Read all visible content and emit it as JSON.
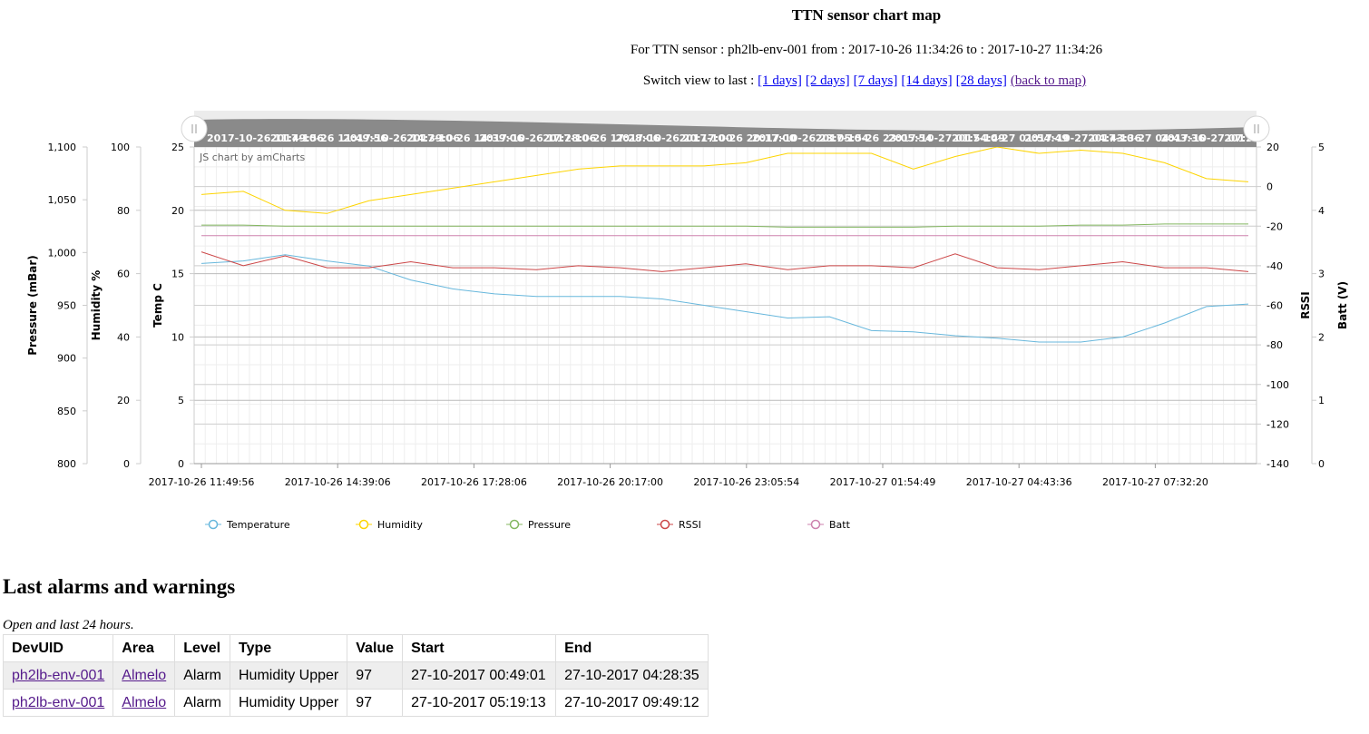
{
  "page": {
    "title": "TTN sensor chart map",
    "subtitle": "For TTN sensor : ph2lb-env-001 from : 2017-10-26 11:34:26 to : 2017-10-27 11:34:26",
    "switch_label": "Switch view to last :",
    "switch_links": [
      "[1 days]",
      "[2 days]",
      "[7 days]",
      "[14 days]",
      "[28 days]"
    ],
    "back_link": "(back to map)"
  },
  "chart_data": {
    "type": "line",
    "credit": "JS chart by amCharts",
    "x_labels": [
      "2017-10-26 11:49:56",
      "2017-10-26 14:39:06",
      "2017-10-26 17:28:06",
      "2017-10-26 20:17:00",
      "2017-10-26 23:05:54",
      "2017-10-27 01:54:49",
      "2017-10-27 04:43:36",
      "2017-10-27 07:32:20"
    ],
    "axes": {
      "pressure": {
        "label": "Pressure (mBar)",
        "range": [
          800,
          1100
        ],
        "ticks": [
          "800",
          "850",
          "900",
          "950",
          "1,000",
          "1,050",
          "1,100"
        ]
      },
      "humidity": {
        "label": "Humidity %",
        "range": [
          0,
          100
        ],
        "ticks": [
          "0",
          "20",
          "40",
          "60",
          "80",
          "100"
        ]
      },
      "temp": {
        "label": "Temp C",
        "range": [
          0,
          25
        ],
        "ticks": [
          "0",
          "5",
          "10",
          "15",
          "20",
          "25"
        ]
      },
      "rssi": {
        "label": "RSSI",
        "range": [
          -140,
          20
        ],
        "ticks": [
          "-140",
          "-120",
          "-100",
          "-80",
          "-60",
          "-40",
          "-20",
          "0",
          "20"
        ]
      },
      "batt": {
        "label": "Batt (V)",
        "range": [
          0,
          5
        ],
        "ticks": [
          "0",
          "1",
          "2",
          "3",
          "4",
          "5"
        ]
      }
    },
    "series": [
      {
        "name": "Temperature",
        "axis": "temp",
        "color": "#67b7dc",
        "values": [
          15.8,
          16.0,
          16.5,
          16.0,
          15.6,
          14.5,
          13.8,
          13.4,
          13.2,
          13.2,
          13.2,
          13.0,
          12.5,
          12.0,
          11.5,
          11.6,
          10.5,
          10.4,
          10.1,
          9.9,
          9.6,
          9.6,
          10.0,
          11.1,
          12.4,
          12.6
        ]
      },
      {
        "name": "Humidity",
        "axis": "humidity",
        "color": "#fdd400",
        "values": [
          85,
          86,
          80,
          79,
          83,
          85,
          87,
          89,
          91,
          93,
          94,
          94,
          94,
          95,
          98,
          98,
          98,
          93,
          97,
          100,
          98,
          99,
          98,
          95,
          90,
          89
        ]
      },
      {
        "name": "Pressure",
        "axis": "pressure",
        "color": "#84b761",
        "values": [
          1026,
          1026,
          1025,
          1025,
          1025,
          1025,
          1025,
          1025,
          1025,
          1025,
          1025,
          1025,
          1025,
          1025,
          1024,
          1024,
          1024,
          1024,
          1025,
          1025,
          1025,
          1026,
          1026,
          1027,
          1027,
          1027
        ]
      },
      {
        "name": "RSSI",
        "axis": "rssi",
        "color": "#cc4748",
        "values": [
          -33,
          -40,
          -35,
          -41,
          -41,
          -38,
          -41,
          -41,
          -42,
          -40,
          -41,
          -43,
          -41,
          -39,
          -42,
          -40,
          -40,
          -41,
          -34,
          -41,
          -42,
          -40,
          -38,
          -41,
          -41,
          -43
        ]
      },
      {
        "name": "Batt",
        "axis": "batt",
        "color": "#cd82ad",
        "values": [
          3.6,
          3.6,
          3.6,
          3.6,
          3.6,
          3.6,
          3.6,
          3.6,
          3.6,
          3.6,
          3.6,
          3.6,
          3.6,
          3.6,
          3.6,
          3.6,
          3.6,
          3.6,
          3.6,
          3.6,
          3.6,
          3.6,
          3.6,
          3.6,
          3.6,
          3.6
        ]
      }
    ]
  },
  "alarms": {
    "heading": "Last alarms and warnings",
    "note": "Open and last 24 hours.",
    "headers": [
      "DevUID",
      "Area",
      "Level",
      "Type",
      "Value",
      "Start",
      "End"
    ],
    "rows": [
      [
        "ph2lb-env-001",
        "Almelo",
        "Alarm",
        "Humidity Upper",
        "97",
        "27-10-2017 00:49:01",
        "27-10-2017 04:28:35"
      ],
      [
        "ph2lb-env-001",
        "Almelo",
        "Alarm",
        "Humidity Upper",
        "97",
        "27-10-2017 05:19:13",
        "27-10-2017 09:49:12"
      ]
    ]
  }
}
